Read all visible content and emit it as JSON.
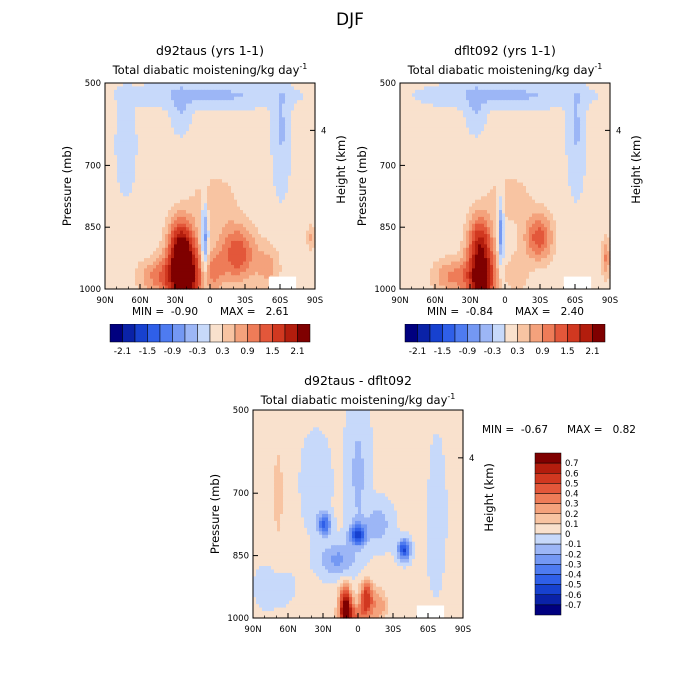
{
  "figure": {
    "title": "DJF",
    "stats_labels": {
      "min": "MIN =",
      "max": "MAX ="
    }
  },
  "colors": {
    "palette13": [
      "#00007f",
      "#0b2fb0",
      "#1f4fd8",
      "#3b6ff0",
      "#6a93f2",
      "#9dbaf5",
      "#cfe2fb",
      "#f9dcc4",
      "#f5b092",
      "#ec7f5e",
      "#dd5030",
      "#c42712",
      "#7f0000"
    ],
    "palette16": [
      "#00007f",
      "#0a22a8",
      "#1741cf",
      "#2f5fe8",
      "#4e7bf0",
      "#7498f3",
      "#9cb6f6",
      "#c7d9fa",
      "#f9e1cd",
      "#f8c4a2",
      "#f4a27c",
      "#ee7c58",
      "#e3573a",
      "#d13820",
      "#b31d0d",
      "#7f0000"
    ]
  },
  "chart_data": [
    {
      "type": "heatmap",
      "title": "d92taus (yrs 1-1)",
      "subtitle": "Total diabatic moistening/kg day",
      "subtitle_sup": "-1",
      "xlabel": "",
      "ylabel": "Pressure (mb)",
      "right_label": "Height (km)",
      "x_ticks": [
        "90N",
        "60N",
        "30N",
        "0",
        "30S",
        "60S",
        "90S"
      ],
      "y_ticks": [
        "500",
        "700",
        "850",
        "1000"
      ],
      "y_tick_values": [
        500,
        700,
        850,
        1000
      ],
      "right_ticks": [
        "4"
      ],
      "min": "-0.90",
      "max": "2.61",
      "colorbar_labels": [
        "-2.1",
        "-1.5",
        "-0.9",
        "-0.3",
        "0.3",
        "0.9",
        "1.5",
        "2.1"
      ],
      "colorbar_levels": [
        -2.1,
        -1.8,
        -1.5,
        -1.2,
        -0.9,
        -0.6,
        -0.3,
        0,
        0.3,
        0.6,
        0.9,
        1.2,
        1.5,
        1.8,
        2.1
      ]
    },
    {
      "type": "heatmap",
      "title": "dflt092 (yrs 1-1)",
      "subtitle": "Total diabatic moistening/kg day",
      "subtitle_sup": "-1",
      "xlabel": "",
      "ylabel": "Pressure (mb)",
      "right_label": "Height (km)",
      "x_ticks": [
        "90N",
        "60N",
        "30N",
        "0",
        "30S",
        "60S",
        "90S"
      ],
      "y_ticks": [
        "500",
        "700",
        "850",
        "1000"
      ],
      "y_tick_values": [
        500,
        700,
        850,
        1000
      ],
      "right_ticks": [
        "4"
      ],
      "min": "-0.84",
      "max": "2.40",
      "colorbar_labels": [
        "-2.1",
        "-1.5",
        "-0.9",
        "-0.3",
        "0.3",
        "0.9",
        "1.5",
        "2.1"
      ],
      "colorbar_levels": [
        -2.1,
        -1.8,
        -1.5,
        -1.2,
        -0.9,
        -0.6,
        -0.3,
        0,
        0.3,
        0.6,
        0.9,
        1.2,
        1.5,
        1.8,
        2.1
      ]
    },
    {
      "type": "heatmap",
      "title": "d92taus - dflt092",
      "subtitle": "Total diabatic moistening/kg day",
      "subtitle_sup": "-1",
      "xlabel": "",
      "ylabel": "Pressure (mb)",
      "right_label": "Height (km)",
      "x_ticks": [
        "90N",
        "60N",
        "30N",
        "0",
        "30S",
        "60S",
        "90S"
      ],
      "y_ticks": [
        "500",
        "700",
        "850",
        "1000"
      ],
      "y_tick_values": [
        500,
        700,
        850,
        1000
      ],
      "right_ticks": [
        "4"
      ],
      "min": "-0.67",
      "max": "0.82",
      "colorbar_labels": [
        "0.7",
        "0.6",
        "0.5",
        "0.4",
        "0.3",
        "0.2",
        "0.1",
        "0",
        "-0.1",
        "-0.2",
        "-0.3",
        "-0.4",
        "-0.5",
        "-0.6",
        "-0.7"
      ],
      "colorbar_levels": [
        -0.7,
        -0.6,
        -0.5,
        -0.4,
        -0.3,
        -0.2,
        -0.1,
        0,
        0.1,
        0.2,
        0.3,
        0.4,
        0.5,
        0.6,
        0.7
      ]
    }
  ]
}
